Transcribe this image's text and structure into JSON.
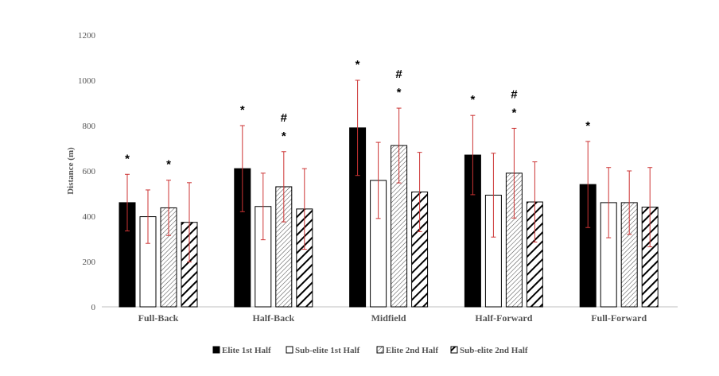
{
  "chart_data": {
    "type": "bar",
    "title": "",
    "xlabel": "",
    "ylabel": "Distance (m)",
    "ylim": [
      0,
      1200
    ],
    "yticks": [
      0,
      200,
      400,
      600,
      800,
      1000,
      1200
    ],
    "grid": false,
    "legend_position": "bottom",
    "categories": [
      "Full-Back",
      "Half-Back",
      "Midfield",
      "Half-Forward",
      "Full-Forward"
    ],
    "series": [
      {
        "name": "Elite 1st Half",
        "fill": "solid",
        "values": [
          460,
          610,
          790,
          670,
          540
        ],
        "errors": [
          125,
          190,
          210,
          175,
          190
        ],
        "marks": [
          "*",
          "*",
          "*",
          "*",
          "*"
        ]
      },
      {
        "name": "Sub-elite 1st Half",
        "fill": "none",
        "values": [
          398,
          443,
          558,
          493,
          460
        ],
        "errors": [
          118,
          147,
          168,
          185,
          155
        ],
        "marks": [
          "",
          "",
          "",
          "",
          ""
        ]
      },
      {
        "name": "Elite 2nd Half",
        "fill": "thin-diagonal",
        "values": [
          437,
          530,
          712,
          590,
          460
        ],
        "errors": [
          122,
          155,
          165,
          198,
          140
        ],
        "marks": [
          "*",
          "#\n*",
          "#\n*",
          "#\n*",
          ""
        ]
      },
      {
        "name": "Sub-elite 2nd Half",
        "fill": "bold-diagonal",
        "values": [
          373,
          432,
          507,
          463,
          440
        ],
        "errors": [
          175,
          178,
          175,
          177,
          175
        ],
        "marks": [
          "",
          "",
          "",
          "",
          ""
        ]
      }
    ],
    "colors": {
      "bar": "#000000",
      "error_bar": "#cc3333",
      "axis": "#bfbfbf",
      "text": "#555555"
    }
  }
}
